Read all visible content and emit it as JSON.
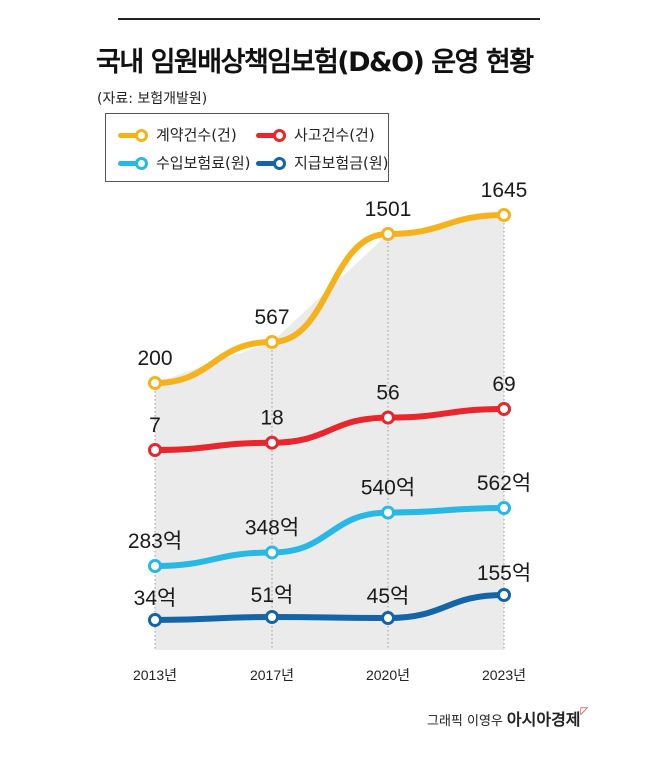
{
  "chart_data": {
    "type": "line",
    "title": "국내 임원배상책임보험(D&O) 운영 현황",
    "subtitle": "(자료: 보험개발원)",
    "categories": [
      "2013년",
      "2017년",
      "2020년",
      "2023년"
    ],
    "series": [
      {
        "name": "계약건수(건)",
        "color": "#f5b21b",
        "values": [
          200,
          567,
          1501,
          1645
        ],
        "labels": [
          "200",
          "567",
          "1501",
          "1645"
        ]
      },
      {
        "name": "사고건수(건)",
        "color": "#e8262b",
        "values": [
          7,
          18,
          56,
          69
        ],
        "labels": [
          "7",
          "18",
          "56",
          "69"
        ]
      },
      {
        "name": "수입보험료(원)",
        "color": "#27b8e6",
        "values": [
          283,
          348,
          540,
          562
        ],
        "labels": [
          "283억",
          "348억",
          "540억",
          "562억"
        ]
      },
      {
        "name": "지급보험금(원)",
        "color": "#1464a8",
        "values": [
          34,
          51,
          45,
          155
        ],
        "labels": [
          "34억",
          "51억",
          "45억",
          "155억"
        ]
      }
    ],
    "legend": "top-left",
    "grid": false
  },
  "footer": {
    "credit": "그래픽 이영우",
    "brand": "아시아경제"
  }
}
